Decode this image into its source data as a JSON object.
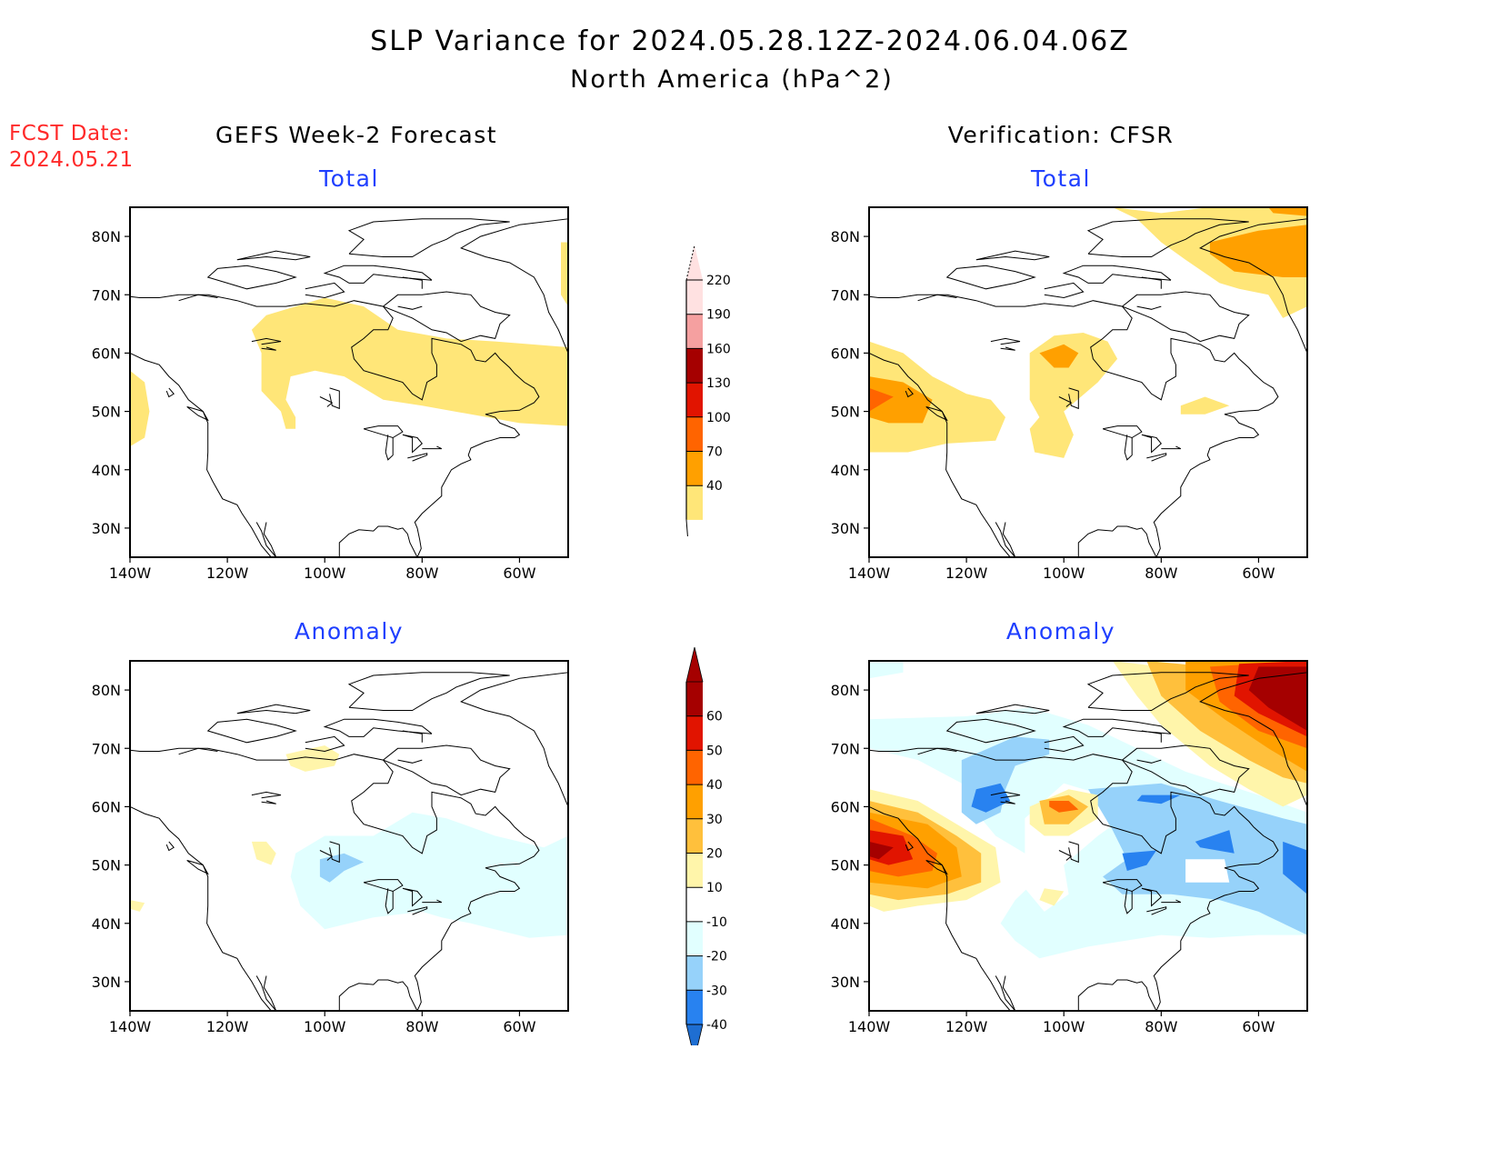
{
  "header": {
    "title": "SLP Variance for 2024.05.28.12Z-2024.06.04.06Z",
    "subtitle": "North America (hPa^2)",
    "fcst_label": "FCST Date:",
    "fcst_date": "2024.05.21",
    "left_column_title": "GEFS Week-2 Forecast",
    "right_column_title": "Verification: CFSR"
  },
  "panels": {
    "fcst_total": {
      "label": "Total"
    },
    "verif_total": {
      "label": "Total"
    },
    "fcst_anom": {
      "label": "Anomaly"
    },
    "verif_anom": {
      "label": "Anomaly"
    }
  },
  "axes": {
    "lat_labels": [
      "80N",
      "70N",
      "60N",
      "50N",
      "40N",
      "30N"
    ],
    "lat_values": [
      80,
      70,
      60,
      50,
      40,
      30
    ],
    "lon_labels": [
      "140W",
      "120W",
      "100W",
      "80W",
      "60W"
    ],
    "lon_values": [
      -140,
      -120,
      -100,
      -80,
      -60
    ],
    "lon_range": [
      -140,
      -50
    ],
    "lat_range": [
      25,
      85
    ]
  },
  "colorbars": {
    "total": {
      "labels": [
        "40",
        "70",
        "100",
        "130",
        "160",
        "190",
        "220"
      ],
      "colors": [
        "#ffe678",
        "#ffa000",
        "#ff6400",
        "#e11400",
        "#a50000",
        "#f5a0a0",
        "#ffe1e1"
      ]
    },
    "anomaly": {
      "labels": [
        "-40",
        "-30",
        "-20",
        "-10",
        "10",
        "20",
        "30",
        "40",
        "50",
        "60"
      ],
      "colors": [
        "#1e6ed2",
        "#2882f0",
        "#96d2fa",
        "#e1ffff",
        "#ffffff",
        "#fff5aa",
        "#ffc03c",
        "#ffa000",
        "#ff6400",
        "#e11400",
        "#a50000"
      ]
    }
  },
  "chart_data": [
    {
      "type": "heatmap",
      "title": "GEFS Week-2 Forecast - Total",
      "units": "hPa^2",
      "levels": [
        40,
        70,
        100,
        130,
        160,
        190,
        220
      ],
      "regions": [
        {
          "name": "northern Canada band",
          "level_min": 40,
          "level_max": 70,
          "approx_lon": [
            -112,
            -50
          ],
          "approx_lat": [
            47,
            70
          ]
        },
        {
          "name": "off Pacific coast",
          "level_min": 40,
          "level_max": 70,
          "approx_lon": [
            -140,
            -136
          ],
          "approx_lat": [
            44,
            57
          ]
        },
        {
          "name": "Greenland coast",
          "level_min": 40,
          "level_max": 70,
          "approx_lon": [
            -52,
            -50
          ],
          "approx_lat": [
            68,
            79
          ]
        }
      ]
    },
    {
      "type": "heatmap",
      "title": "Verification CFSR - Total",
      "units": "hPa^2",
      "levels": [
        40,
        70,
        100,
        130,
        160,
        190,
        220
      ],
      "regions": [
        {
          "name": "NE Pacific / BC",
          "level_min": 40,
          "level_max": 130,
          "peak_level": "100-130",
          "approx_lon": [
            -140,
            -112
          ],
          "approx_lat": [
            43,
            62
          ]
        },
        {
          "name": "central Canada",
          "level_min": 40,
          "level_max": 100,
          "peak_level": "70-100",
          "approx_lon": [
            -110,
            -92
          ],
          "approx_lat": [
            44,
            63
          ]
        },
        {
          "name": "Greenland / Baffin Bay",
          "level_min": 40,
          "level_max": 130,
          "peak_level": "100-130",
          "approx_lon": [
            -90,
            -50
          ],
          "approx_lat": [
            60,
            85
          ]
        },
        {
          "name": "Labrador",
          "level_min": 40,
          "level_max": 70,
          "approx_lon": [
            -76,
            -68
          ],
          "approx_lat": [
            49,
            52
          ]
        }
      ]
    },
    {
      "type": "heatmap",
      "title": "GEFS Week-2 Forecast - Anomaly",
      "units": "hPa^2",
      "levels": [
        -40,
        -30,
        -20,
        -10,
        10,
        20,
        30,
        40,
        50,
        60
      ],
      "regions": [
        {
          "name": "Arctic coast",
          "level_min": 10,
          "level_max": 20,
          "approx_lon": [
            -108,
            -94
          ],
          "approx_lat": [
            66,
            71
          ]
        },
        {
          "name": "Alberta",
          "level_min": 10,
          "level_max": 20,
          "approx_lon": [
            -115,
            -109
          ],
          "approx_lat": [
            51,
            55
          ]
        },
        {
          "name": "Pacific",
          "level_min": 10,
          "level_max": 20,
          "approx_lon": [
            -140,
            -135
          ],
          "approx_lat": [
            41,
            44
          ]
        },
        {
          "name": "eastern Canada / Great Lakes",
          "level_min": -20,
          "level_max": -10,
          "approx_lon": [
            -105,
            -50
          ],
          "approx_lat": [
            37,
            59
          ]
        },
        {
          "name": "Manitoba",
          "level_min": -30,
          "level_max": -20,
          "approx_lon": [
            -101,
            -90
          ],
          "approx_lat": [
            46,
            52
          ]
        }
      ]
    },
    {
      "type": "heatmap",
      "title": "Verification CFSR - Anomaly",
      "units": "hPa^2",
      "levels": [
        -40,
        -30,
        -20,
        -10,
        10,
        20,
        30,
        40,
        50,
        60
      ],
      "regions": [
        {
          "name": "NE Pacific / BC",
          "level_min": 10,
          "level_max": 60,
          "peak_level": ">60",
          "approx_lon": [
            -140,
            -107
          ],
          "approx_lat": [
            42,
            62
          ]
        },
        {
          "name": "Greenland / Baffin Bay",
          "level_min": 10,
          "level_max": 60,
          "peak_level": ">60",
          "approx_lon": [
            -95,
            -50
          ],
          "approx_lat": [
            58,
            85
          ]
        },
        {
          "name": "central Canada",
          "level_min": 10,
          "level_max": 40,
          "peak_level": "30-40",
          "approx_lon": [
            -106,
            -93
          ],
          "approx_lat": [
            54,
            62
          ]
        },
        {
          "name": "NW Territories",
          "level_min": -40,
          "level_max": -10,
          "peak_level": "-40 to -30",
          "approx_lon": [
            -120,
            -97
          ],
          "approx_lat": [
            56,
            73
          ]
        },
        {
          "name": "Hudson Bay / Quebec / Labrador",
          "level_min": -40,
          "level_max": -10,
          "peak_level": "-40 to -30",
          "approx_lon": [
            -100,
            -50
          ],
          "approx_lat": [
            37,
            64
          ]
        },
        {
          "name": "Dakotas",
          "level_min": 10,
          "level_max": 20,
          "approx_lon": [
            -104,
            -97
          ],
          "approx_lat": [
            43,
            46
          ]
        }
      ]
    }
  ]
}
